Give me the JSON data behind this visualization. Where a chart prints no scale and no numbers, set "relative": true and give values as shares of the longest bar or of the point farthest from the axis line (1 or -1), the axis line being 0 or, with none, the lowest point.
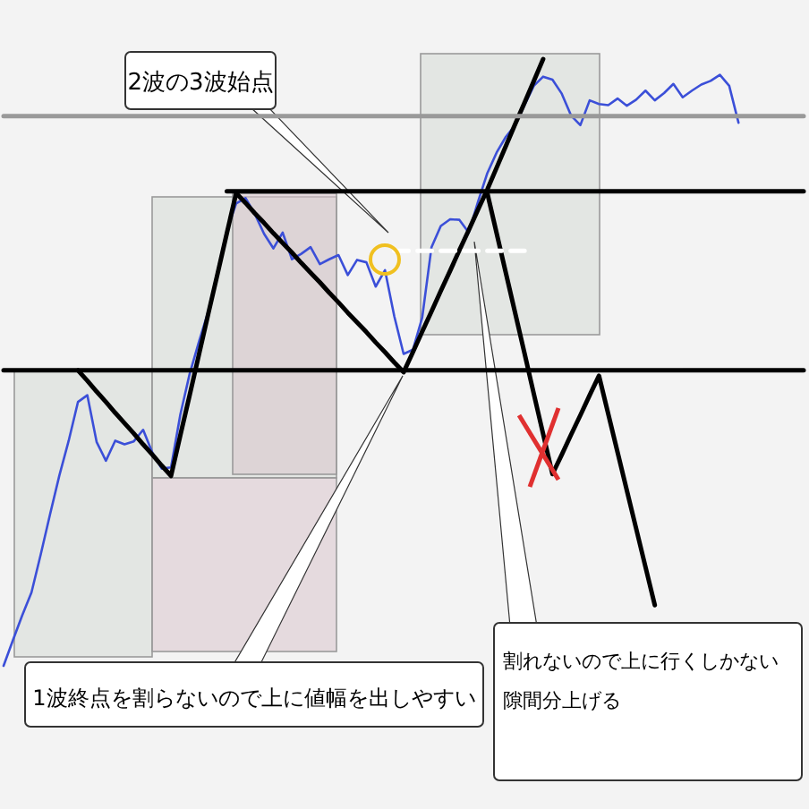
{
  "chart_data": {
    "type": "line",
    "relative": true,
    "categories": [
      null,
      null,
      null,
      null,
      null,
      null,
      null,
      null,
      null,
      null,
      null,
      null,
      null,
      null,
      null,
      null,
      null,
      null,
      null,
      null,
      null,
      null,
      null,
      null,
      null,
      null,
      null,
      null,
      null,
      null,
      null,
      null,
      null,
      null,
      null,
      null,
      null,
      null,
      null,
      null,
      null,
      null,
      null,
      null,
      null,
      null,
      null,
      null,
      null,
      null,
      null,
      null,
      null,
      null,
      null,
      null,
      null,
      null,
      null,
      null,
      null,
      null,
      null,
      null,
      null,
      null,
      null,
      null,
      null,
      null,
      null,
      null,
      null,
      null,
      null,
      null,
      null,
      null,
      null,
      null,
      null,
      null,
      null,
      null,
      null,
      null,
      null
    ],
    "series": [
      {
        "color": "#3b4fd8",
        "values": [
          0,
          0.042,
          0.083,
          0.121,
          0.184,
          0.25,
          0.314,
          0.371,
          0.435,
          0.446,
          0.369,
          0.338,
          0.371,
          0.365,
          0.37,
          0.389,
          0.351,
          0.325,
          0.327,
          0.414,
          0.481,
          0.534,
          0.584,
          0.65,
          0.717,
          0.762,
          0.771,
          0.745,
          0.712,
          0.688,
          0.714,
          0.67,
          0.679,
          0.69,
          0.662,
          0.67,
          0.677,
          0.644,
          0.669,
          0.665,
          0.625,
          0.652,
          0.576,
          0.514,
          0.521,
          0.574,
          0.69,
          0.725,
          0.736,
          0.735,
          0.714,
          0.765,
          0.812,
          0.846,
          0.872,
          0.891,
          0.924,
          0.956,
          0.971,
          0.966,
          0.943,
          0.907,
          0.891,
          0.932,
          0.926,
          0.924,
          0.935,
          0.923,
          0.933,
          0.948,
          0.932,
          0.944,
          0.959,
          0.937,
          0.948,
          0.958,
          0.964,
          0.974,
          0.956,
          0.895,
          null,
          null,
          null,
          null,
          null,
          null,
          null
        ]
      },
      {
        "color": "#000000",
        "values": [
          null,
          null,
          null,
          null,
          null,
          null,
          null,
          null,
          0.487,
          0.47,
          0.452,
          0.435,
          0.417,
          0.4,
          0.383,
          0.365,
          0.348,
          0.33,
          0.313,
          0.38,
          0.446,
          0.513,
          0.58,
          0.646,
          0.713,
          0.779,
          0.763,
          0.746,
          0.73,
          0.713,
          0.697,
          0.681,
          0.664,
          0.648,
          0.632,
          0.615,
          0.599,
          0.582,
          0.566,
          0.55,
          0.533,
          0.517,
          0.5,
          0.484,
          0.517,
          0.551,
          0.584,
          0.618,
          0.651,
          0.685,
          0.718,
          0.752,
          0.785,
          0.821,
          0.857,
          0.893,
          0.928,
          0.964,
          1,
          null,
          null,
          null,
          null,
          null,
          null,
          null,
          null,
          null,
          null,
          null,
          null,
          null,
          null,
          null,
          null,
          null,
          null,
          null,
          null,
          null,
          null,
          null,
          null,
          null,
          null,
          null,
          null
        ]
      },
      {
        "color": "#000000",
        "values": [
          null,
          null,
          null,
          null,
          null,
          null,
          null,
          null,
          null,
          null,
          null,
          null,
          null,
          null,
          null,
          null,
          null,
          null,
          null,
          null,
          null,
          null,
          null,
          null,
          null,
          null,
          null,
          null,
          null,
          null,
          null,
          null,
          null,
          null,
          null,
          null,
          null,
          null,
          null,
          null,
          null,
          null,
          null,
          null,
          null,
          null,
          null,
          null,
          null,
          null,
          null,
          null,
          0.779,
          0.713,
          0.647,
          0.581,
          0.515,
          0.448,
          0.382,
          0.316,
          0.348,
          0.381,
          0.413,
          0.446,
          0.478,
          0.415,
          0.352,
          0.289,
          0.226,
          0.163,
          0.1,
          null,
          null,
          null,
          null,
          null,
          null,
          null,
          null,
          null,
          null,
          null,
          null,
          null,
          null,
          null,
          null
        ]
      },
      {
        "color": "#000000",
        "values": [
          0.487,
          0.487,
          0.487,
          0.487,
          0.487,
          0.487,
          0.487,
          0.487,
          0.487,
          0.487,
          0.487,
          0.487,
          0.487,
          0.487,
          0.487,
          0.487,
          0.487,
          0.487,
          0.487,
          0.487,
          0.487,
          0.487,
          0.487,
          0.487,
          0.487,
          0.487,
          0.487,
          0.487,
          0.487,
          0.487,
          0.487,
          0.487,
          0.487,
          0.487,
          0.487,
          0.487,
          0.487,
          0.487,
          0.487,
          0.487,
          0.487,
          0.487,
          0.487,
          0.487,
          0.487,
          0.487,
          0.487,
          0.487,
          0.487,
          0.487,
          0.487,
          0.487,
          0.487,
          0.487,
          0.487,
          0.487,
          0.487,
          0.487,
          0.487,
          0.487,
          0.487,
          0.487,
          0.487,
          0.487,
          0.487,
          0.487,
          0.487,
          0.487,
          0.487,
          0.487,
          0.487,
          0.487,
          0.487,
          0.487,
          0.487,
          0.487,
          0.487,
          0.487,
          0.487,
          0.487,
          0.487,
          0.487,
          0.487,
          0.487,
          0.487,
          0.487,
          0.487
        ]
      },
      {
        "color": "#000000",
        "values": [
          null,
          null,
          null,
          null,
          null,
          null,
          null,
          null,
          null,
          null,
          null,
          null,
          null,
          null,
          null,
          null,
          null,
          null,
          null,
          null,
          null,
          null,
          null,
          null,
          0.782,
          0.782,
          0.782,
          0.782,
          0.782,
          0.782,
          0.782,
          0.782,
          0.782,
          0.782,
          0.782,
          0.782,
          0.782,
          0.782,
          0.782,
          0.782,
          0.782,
          0.782,
          0.782,
          0.782,
          0.782,
          0.782,
          0.782,
          0.782,
          0.782,
          0.782,
          0.782,
          0.782,
          0.782,
          0.782,
          0.782,
          0.782,
          0.782,
          0.782,
          0.782,
          0.782,
          0.782,
          0.782,
          0.782,
          0.782,
          0.782,
          0.782,
          0.782,
          0.782,
          0.782,
          0.782,
          0.782,
          0.782,
          0.782,
          0.782,
          0.782,
          0.782,
          0.782,
          0.782,
          0.782,
          0.782,
          0.782,
          0.782,
          0.782,
          0.782,
          0.782,
          0.782,
          0.782
        ]
      },
      {
        "color": "#999999",
        "values": [
          0.906,
          0.906,
          0.906,
          0.906,
          0.906,
          0.906,
          0.906,
          0.906,
          0.906,
          0.906,
          0.906,
          0.906,
          0.906,
          0.906,
          0.906,
          0.906,
          0.906,
          0.906,
          0.906,
          0.906,
          0.906,
          0.906,
          0.906,
          0.906,
          0.906,
          0.906,
          0.906,
          0.906,
          0.906,
          0.906,
          0.906,
          0.906,
          0.906,
          0.906,
          0.906,
          0.906,
          0.906,
          0.906,
          0.906,
          0.906,
          0.906,
          0.906,
          0.906,
          0.906,
          0.906,
          0.906,
          0.906,
          0.906,
          0.906,
          0.906,
          0.906,
          0.906,
          0.906,
          0.906,
          0.906,
          0.906,
          0.906,
          0.906,
          0.906,
          0.906,
          0.906,
          0.906,
          0.906,
          0.906,
          0.906,
          0.906,
          0.906,
          0.906,
          0.906,
          0.906,
          0.906,
          0.906,
          0.906,
          0.906,
          0.906,
          0.906,
          0.906,
          0.906,
          0.906,
          0.906,
          0.906,
          0.906,
          0.906,
          0.906,
          0.906,
          0.906,
          0.906
        ]
      },
      {
        "color": "#ffffff",
        "line_style": "dashed",
        "values": [
          null,
          null,
          null,
          null,
          null,
          null,
          null,
          null,
          null,
          null,
          null,
          null,
          null,
          null,
          null,
          null,
          null,
          null,
          null,
          null,
          null,
          null,
          null,
          null,
          null,
          null,
          null,
          null,
          null,
          null,
          null,
          null,
          null,
          null,
          null,
          null,
          null,
          null,
          null,
          null,
          null,
          null,
          0.684,
          0.684,
          0.684,
          0.684,
          0.684,
          0.684,
          0.684,
          0.684,
          0.684,
          0.684,
          0.684,
          0.684,
          0.684,
          0.684,
          0.684,
          null,
          null,
          null,
          null,
          null,
          null,
          null,
          null,
          null,
          null,
          null,
          null,
          null,
          null,
          null,
          null,
          null,
          null,
          null,
          null,
          null,
          null,
          null,
          null,
          null,
          null,
          null,
          null,
          null,
          null
        ]
      }
    ],
    "annotations": [
      "2波の3波始点",
      "1波終点を割らないので上に値幅を出しやすい",
      "割れないので上に行くしかない",
      "隙間分上げる"
    ]
  }
}
